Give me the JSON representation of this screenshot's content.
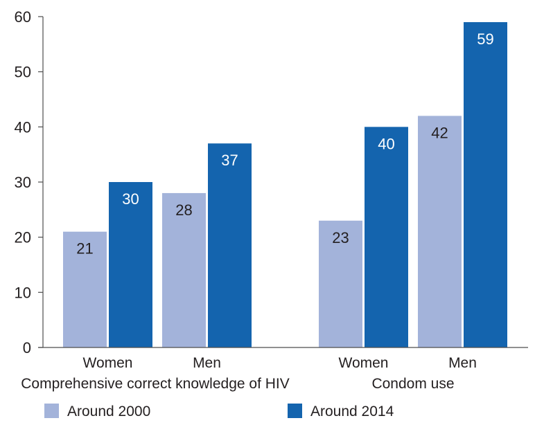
{
  "chart_data": {
    "type": "bar",
    "title": "",
    "xlabel": "",
    "ylabel": "",
    "ylim": [
      0,
      60
    ],
    "yticks": [
      0,
      10,
      20,
      30,
      40,
      50,
      60
    ],
    "grid": false,
    "legend_position": "bottom",
    "groups": [
      {
        "label": "Comprehensive correct knowledge of HIV",
        "categories": [
          "Women",
          "Men"
        ]
      },
      {
        "label": "Condom use",
        "categories": [
          "Women",
          "Men"
        ]
      }
    ],
    "series": [
      {
        "name": "Around 2000",
        "color": "#a3b3da",
        "label_color": "#231f20",
        "values": [
          21,
          28,
          23,
          42
        ]
      },
      {
        "name": "Around 2014",
        "color": "#1464ae",
        "label_color": "#ffffff",
        "values": [
          30,
          37,
          40,
          59
        ]
      }
    ],
    "axis_color": "#4d4d4d"
  }
}
